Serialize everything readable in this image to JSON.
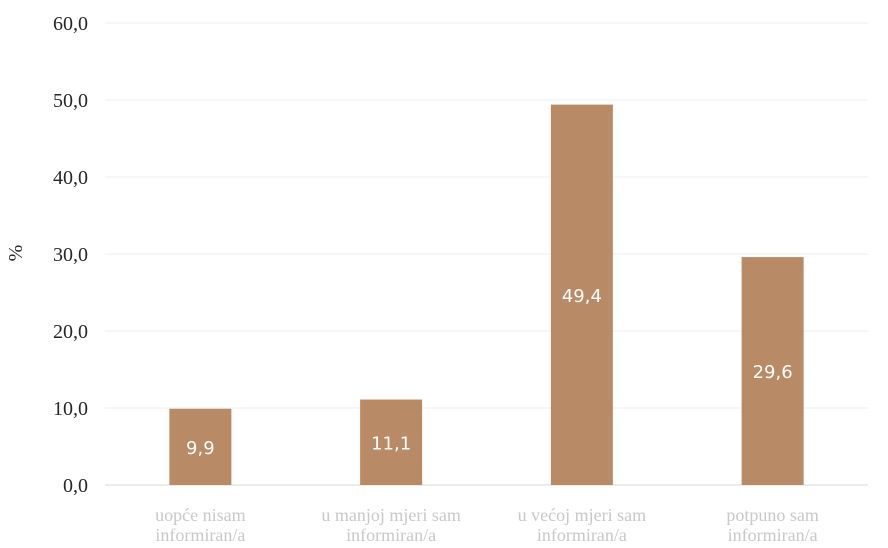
{
  "chart_data": {
    "type": "bar",
    "ylabel": "%",
    "ylim": [
      0,
      60
    ],
    "yticks": [
      "0,0",
      "10,0",
      "20,0",
      "30,0",
      "40,0",
      "50,0",
      "60,0"
    ],
    "categories": [
      [
        "uopće nisam",
        "informiran/a"
      ],
      [
        "u manjoj mjeri sam",
        "informiran/a"
      ],
      [
        "u većoj mjeri  sam",
        "informiran/a"
      ],
      [
        "potpuno sam",
        "informiran/a"
      ]
    ],
    "values": [
      9.9,
      11.1,
      49.4,
      29.6
    ],
    "value_labels": [
      "9,9",
      "11,1",
      "49,4",
      "29,6"
    ],
    "bar_color": "#b98a66",
    "grid": true,
    "grid_color": "#ececec",
    "legend": false
  }
}
